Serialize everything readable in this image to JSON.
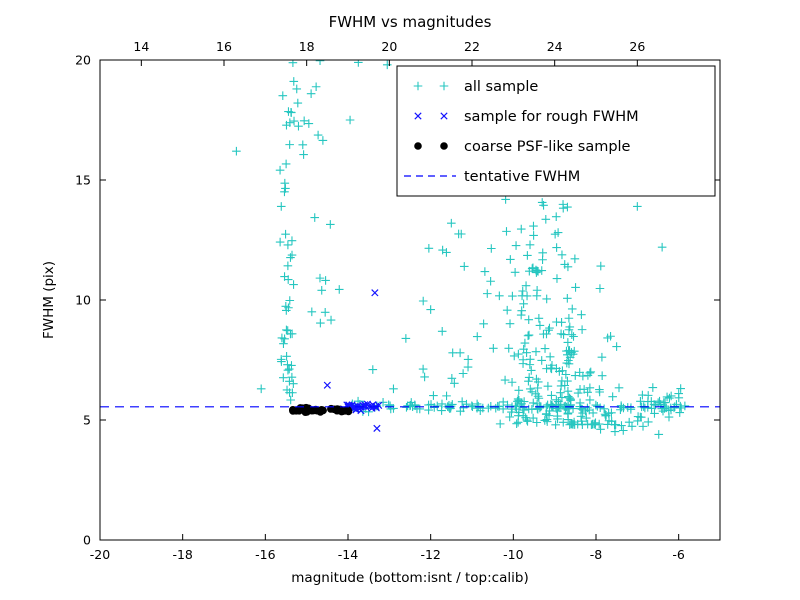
{
  "chart_data": {
    "type": "scatter",
    "title": "FWHM vs magnitudes",
    "xlabel": "magnitude (bottom:isnt / top:calib)",
    "ylabel": "FWHM (pix)",
    "xlim": [
      -20,
      -5
    ],
    "ylim": [
      0,
      20
    ],
    "grid": false,
    "frame_color": "#000000",
    "background": "#ffffff",
    "x_ticks_bottom": [
      -20,
      -18,
      -16,
      -14,
      -12,
      -10,
      -8,
      -6
    ],
    "x_ticks_top": {
      "values": [
        14,
        16,
        18,
        20,
        22,
        24,
        26
      ],
      "offset_from_bottom_scale": 33
    },
    "y_ticks": [
      0,
      5,
      10,
      15,
      20
    ],
    "tentative_fwhm": 5.55,
    "tentative_fwhm_color": "#0000ff",
    "legend": {
      "position": "upper right",
      "entries": [
        {
          "label": "all sample",
          "marker": "plus",
          "color": "#26c6c0"
        },
        {
          "label": "sample for rough FWHM",
          "marker": "x",
          "color": "#1414ff"
        },
        {
          "label": "coarse PSF-like sample",
          "marker": "dot",
          "color": "#000000"
        },
        {
          "label": "tentative FWHM",
          "marker": "dashed-line",
          "color": "#0000ff"
        }
      ]
    },
    "series": [
      {
        "name": "all sample",
        "marker": "plus",
        "color": "#26c6c0",
        "clusters": [
          {
            "n": 30,
            "x": {
              "c": -15.45,
              "s": 0.12
            },
            "y": {
              "min": 5.8,
              "max": 11.5
            },
            "ybias": 1.3
          },
          {
            "n": 22,
            "x": {
              "c": -15.42,
              "s": 0.15
            },
            "y": {
              "min": 11.5,
              "max": 20
            }
          },
          {
            "n": 12,
            "x": {
              "c": -14.8,
              "s": 0.4
            },
            "y": {
              "min": 16,
              "max": 20
            }
          },
          {
            "n": 10,
            "x": {
              "c": -14.6,
              "s": 0.25
            },
            "y": {
              "min": 8.8,
              "max": 13.5
            }
          },
          {
            "n": 120,
            "x": {
              "min": -13.9,
              "max": -5.8
            },
            "y": {
              "c": 5.55,
              "s": 0.1
            }
          },
          {
            "n": 150,
            "x": {
              "c": -8.9,
              "s": 0.8
            },
            "y": {
              "min": 4.8,
              "max": 7.8
            },
            "ybias": 1.6
          },
          {
            "n": 70,
            "x": {
              "c": -9.1,
              "s": 0.85
            },
            "y": {
              "min": 7.8,
              "max": 11.5
            },
            "ybias": 1.2
          },
          {
            "n": 30,
            "x": {
              "c": -9.3,
              "s": 0.7
            },
            "y": {
              "min": 11.5,
              "max": 15.6
            }
          },
          {
            "n": 22,
            "x": {
              "min": -12.3,
              "max": -10.4
            },
            "y": {
              "min": 6,
              "max": 14
            },
            "ybias": 1.4
          },
          {
            "n": 25,
            "x": {
              "min": -7.5,
              "max": -5.9
            },
            "y": {
              "c": 5.6,
              "s": 0.45
            }
          },
          {
            "n": 14,
            "x": {
              "min": -8.4,
              "max": -6.2
            },
            "y": {
              "min": 4.2,
              "max": 5.2
            }
          }
        ],
        "points": [
          [
            -16.7,
            16.2
          ],
          [
            -16.1,
            6.3
          ],
          [
            -13.75,
            19.9
          ],
          [
            -13.95,
            17.5
          ],
          [
            -13.05,
            19.8
          ],
          [
            -12.6,
            8.4
          ],
          [
            -12.0,
            9.6
          ],
          [
            -11.5,
            13.2
          ],
          [
            -6.4,
            12.2
          ],
          [
            -7.0,
            13.9
          ],
          [
            -13.4,
            7.1
          ],
          [
            -12.9,
            6.3
          ],
          [
            -8.6,
            15.9
          ],
          [
            -9.8,
            15.2
          ]
        ]
      },
      {
        "name": "sample for rough FWHM",
        "marker": "x",
        "color": "#1414ff",
        "clusters": [
          {
            "n": 30,
            "x": {
              "min": -14.05,
              "max": -13.25
            },
            "y": {
              "c": 5.55,
              "s": 0.08
            }
          }
        ],
        "points": [
          [
            -13.35,
            10.3
          ],
          [
            -14.5,
            6.45
          ],
          [
            -13.3,
            4.65
          ]
        ]
      },
      {
        "name": "coarse PSF-like sample",
        "marker": "dot",
        "color": "#000000",
        "clusters": [
          {
            "n": 42,
            "x": {
              "min": -15.35,
              "max": -13.95
            },
            "y": {
              "c": 5.42,
              "s": 0.05
            }
          }
        ],
        "points": []
      }
    ]
  }
}
